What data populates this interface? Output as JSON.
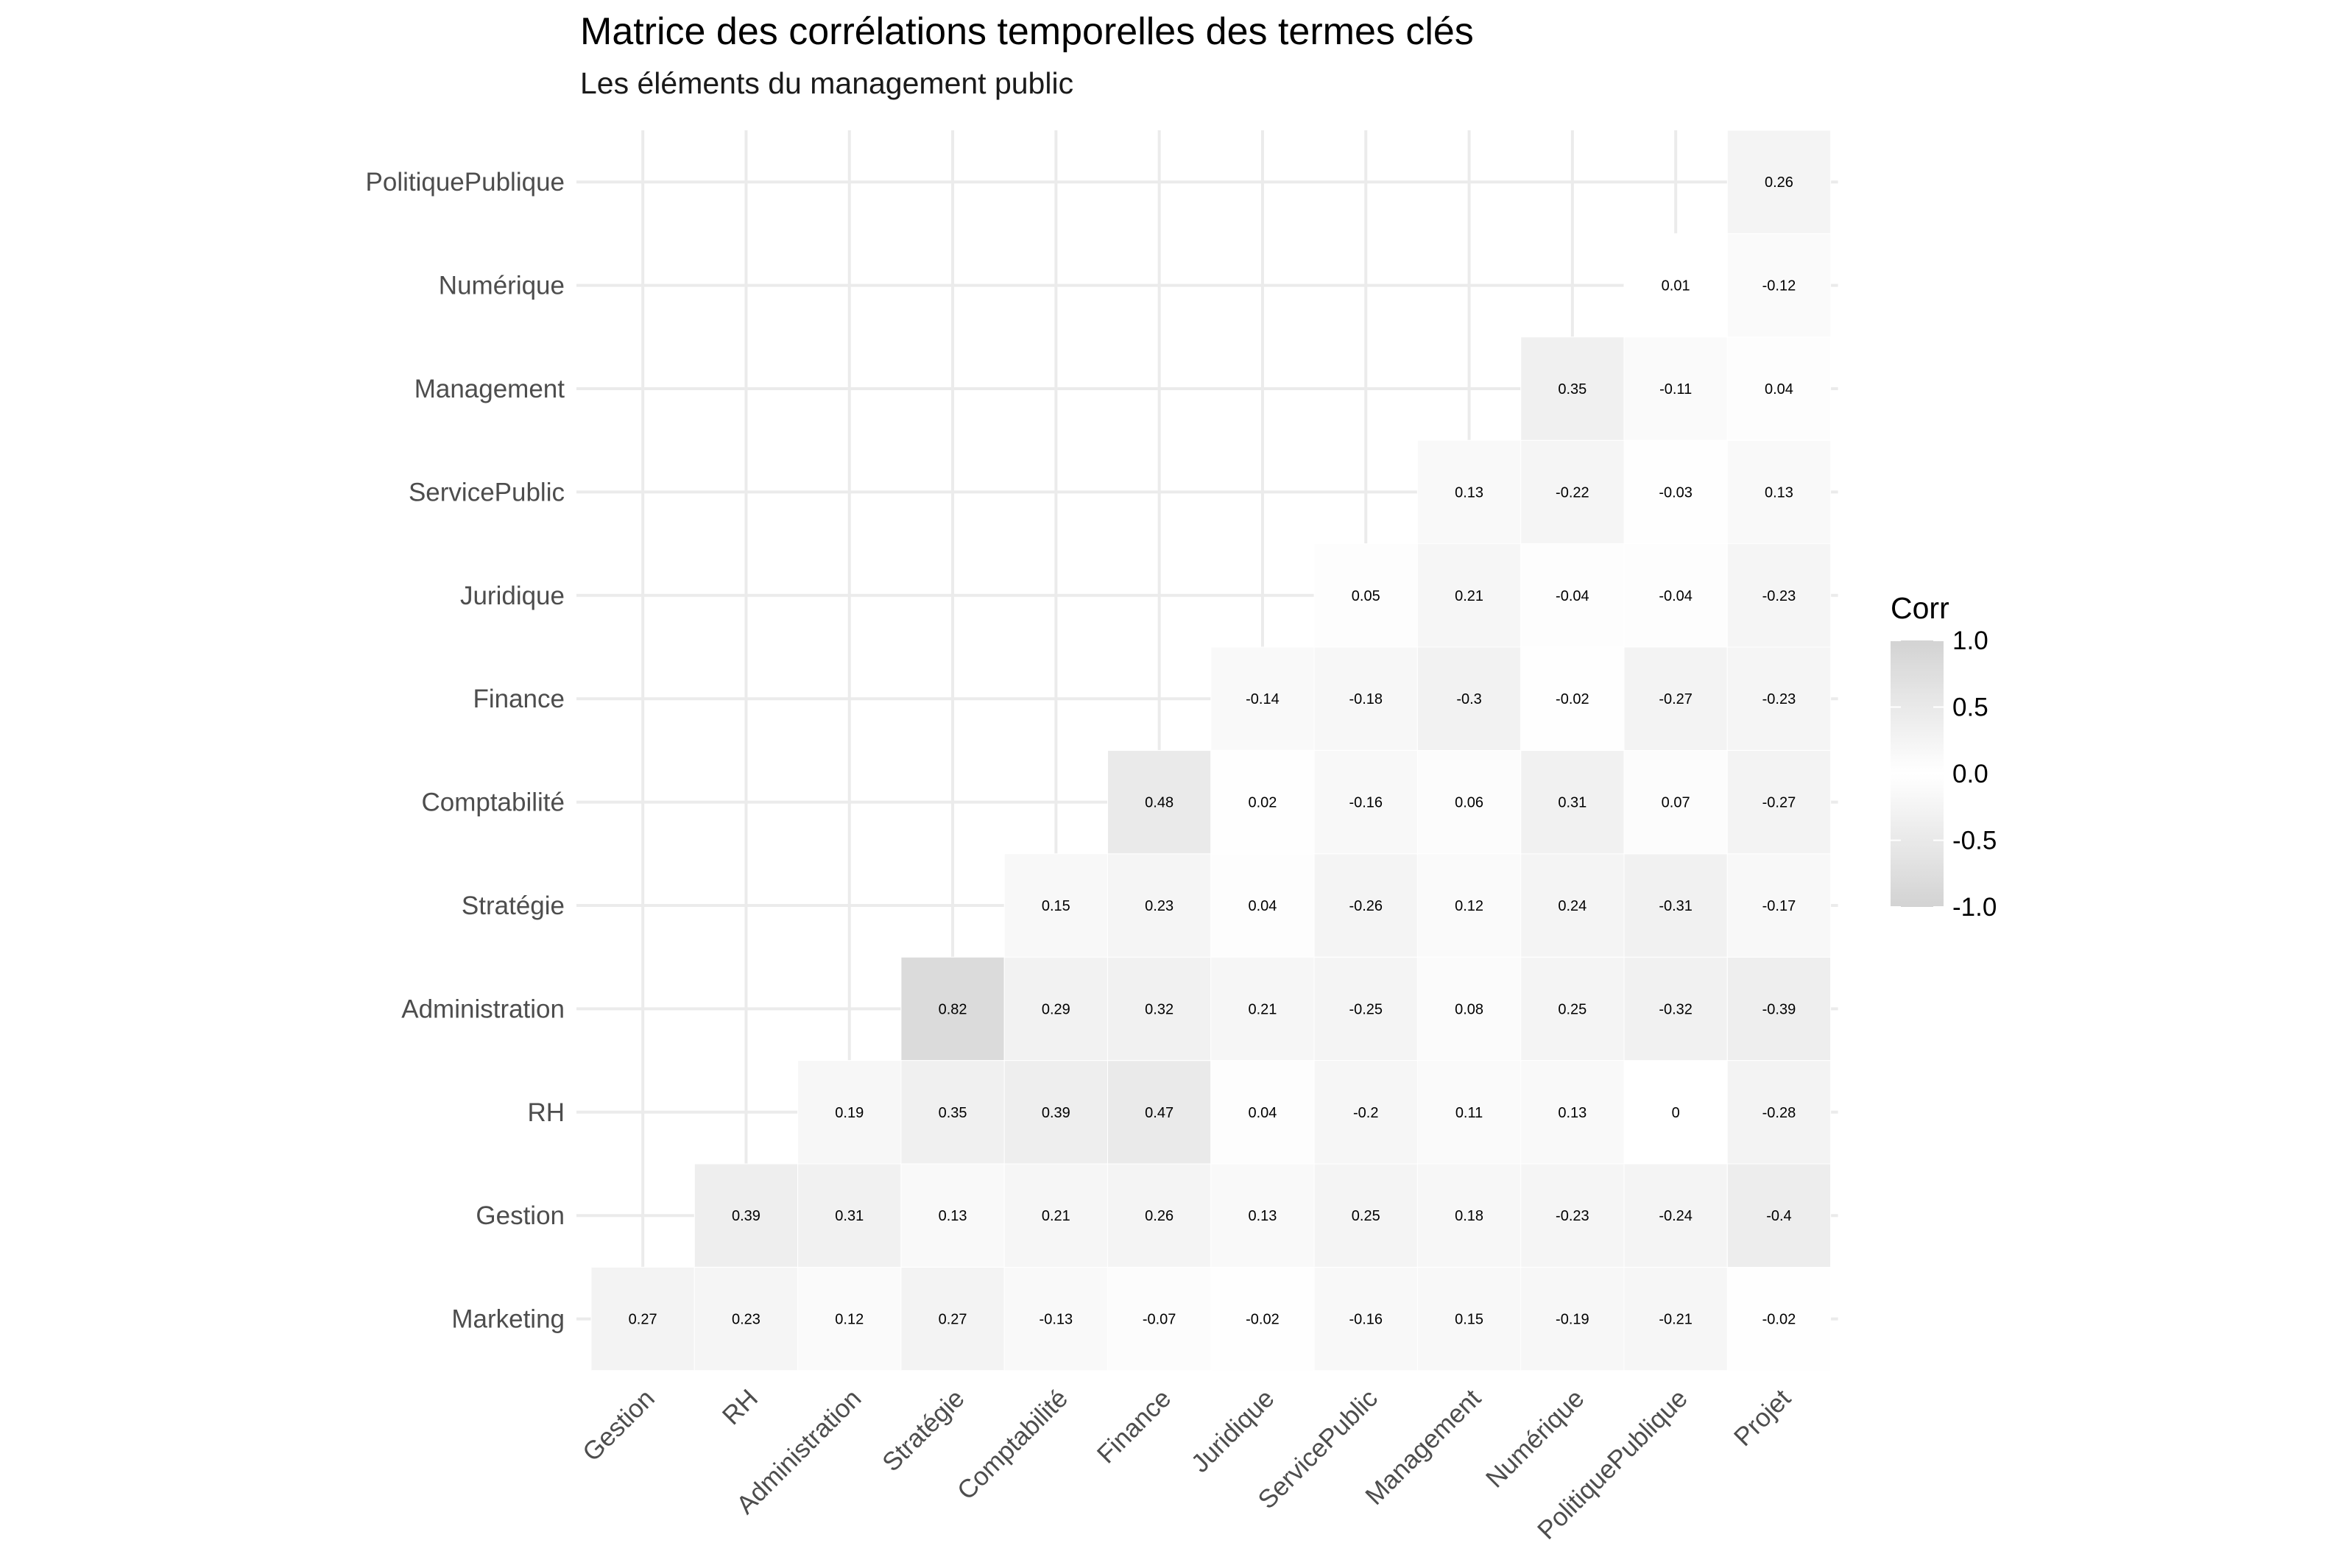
{
  "chart_data": {
    "type": "heatmap",
    "title": "Matrice des corrélations temporelles des termes clés",
    "subtitle": "Les éléments du management public",
    "x_categories": [
      "Gestion",
      "RH",
      "Administration",
      "Stratégie",
      "Comptabilité",
      "Finance",
      "Juridique",
      "ServicePublic",
      "Management",
      "Numérique",
      "PolitiquePublique",
      "Projet"
    ],
    "y_categories": [
      "Marketing",
      "Gestion",
      "RH",
      "Administration",
      "Stratégie",
      "Comptabilité",
      "Finance",
      "Juridique",
      "ServicePublic",
      "Management",
      "Numérique",
      "PolitiquePublique"
    ],
    "cells": [
      {
        "x": "Gestion",
        "y": "Marketing",
        "value": 0.27
      },
      {
        "x": "RH",
        "y": "Marketing",
        "value": 0.23
      },
      {
        "x": "Administration",
        "y": "Marketing",
        "value": 0.12
      },
      {
        "x": "Stratégie",
        "y": "Marketing",
        "value": 0.27
      },
      {
        "x": "Comptabilité",
        "y": "Marketing",
        "value": -0.13
      },
      {
        "x": "Finance",
        "y": "Marketing",
        "value": -0.07
      },
      {
        "x": "Juridique",
        "y": "Marketing",
        "value": -0.02
      },
      {
        "x": "ServicePublic",
        "y": "Marketing",
        "value": -0.16
      },
      {
        "x": "Management",
        "y": "Marketing",
        "value": 0.15
      },
      {
        "x": "Numérique",
        "y": "Marketing",
        "value": -0.19
      },
      {
        "x": "PolitiquePublique",
        "y": "Marketing",
        "value": -0.21
      },
      {
        "x": "Projet",
        "y": "Marketing",
        "value": -0.02
      },
      {
        "x": "RH",
        "y": "Gestion",
        "value": 0.39
      },
      {
        "x": "Administration",
        "y": "Gestion",
        "value": 0.31
      },
      {
        "x": "Stratégie",
        "y": "Gestion",
        "value": 0.13
      },
      {
        "x": "Comptabilité",
        "y": "Gestion",
        "value": 0.21
      },
      {
        "x": "Finance",
        "y": "Gestion",
        "value": 0.26
      },
      {
        "x": "Juridique",
        "y": "Gestion",
        "value": 0.13
      },
      {
        "x": "ServicePublic",
        "y": "Gestion",
        "value": 0.25
      },
      {
        "x": "Management",
        "y": "Gestion",
        "value": 0.18
      },
      {
        "x": "Numérique",
        "y": "Gestion",
        "value": -0.23
      },
      {
        "x": "PolitiquePublique",
        "y": "Gestion",
        "value": -0.24
      },
      {
        "x": "Projet",
        "y": "Gestion",
        "value": -0.4
      },
      {
        "x": "Administration",
        "y": "RH",
        "value": 0.19
      },
      {
        "x": "Stratégie",
        "y": "RH",
        "value": 0.35
      },
      {
        "x": "Comptabilité",
        "y": "RH",
        "value": 0.39
      },
      {
        "x": "Finance",
        "y": "RH",
        "value": 0.47
      },
      {
        "x": "Juridique",
        "y": "RH",
        "value": 0.04
      },
      {
        "x": "ServicePublic",
        "y": "RH",
        "value": -0.2
      },
      {
        "x": "Management",
        "y": "RH",
        "value": 0.11
      },
      {
        "x": "Numérique",
        "y": "RH",
        "value": 0.13
      },
      {
        "x": "PolitiquePublique",
        "y": "RH",
        "value": 0
      },
      {
        "x": "Projet",
        "y": "RH",
        "value": -0.28
      },
      {
        "x": "Stratégie",
        "y": "Administration",
        "value": 0.82
      },
      {
        "x": "Comptabilité",
        "y": "Administration",
        "value": 0.29
      },
      {
        "x": "Finance",
        "y": "Administration",
        "value": 0.32
      },
      {
        "x": "Juridique",
        "y": "Administration",
        "value": 0.21
      },
      {
        "x": "ServicePublic",
        "y": "Administration",
        "value": -0.25
      },
      {
        "x": "Management",
        "y": "Administration",
        "value": 0.08
      },
      {
        "x": "Numérique",
        "y": "Administration",
        "value": 0.25
      },
      {
        "x": "PolitiquePublique",
        "y": "Administration",
        "value": -0.32
      },
      {
        "x": "Projet",
        "y": "Administration",
        "value": -0.39
      },
      {
        "x": "Comptabilité",
        "y": "Stratégie",
        "value": 0.15
      },
      {
        "x": "Finance",
        "y": "Stratégie",
        "value": 0.23
      },
      {
        "x": "Juridique",
        "y": "Stratégie",
        "value": 0.04
      },
      {
        "x": "ServicePublic",
        "y": "Stratégie",
        "value": -0.26
      },
      {
        "x": "Management",
        "y": "Stratégie",
        "value": 0.12
      },
      {
        "x": "Numérique",
        "y": "Stratégie",
        "value": 0.24
      },
      {
        "x": "PolitiquePublique",
        "y": "Stratégie",
        "value": -0.31
      },
      {
        "x": "Projet",
        "y": "Stratégie",
        "value": -0.17
      },
      {
        "x": "Finance",
        "y": "Comptabilité",
        "value": 0.48
      },
      {
        "x": "Juridique",
        "y": "Comptabilité",
        "value": 0.02
      },
      {
        "x": "ServicePublic",
        "y": "Comptabilité",
        "value": -0.16
      },
      {
        "x": "Management",
        "y": "Comptabilité",
        "value": 0.06
      },
      {
        "x": "Numérique",
        "y": "Comptabilité",
        "value": 0.31
      },
      {
        "x": "PolitiquePublique",
        "y": "Comptabilité",
        "value": 0.07
      },
      {
        "x": "Projet",
        "y": "Comptabilité",
        "value": -0.27
      },
      {
        "x": "Juridique",
        "y": "Finance",
        "value": -0.14
      },
      {
        "x": "ServicePublic",
        "y": "Finance",
        "value": -0.18
      },
      {
        "x": "Management",
        "y": "Finance",
        "value": -0.3
      },
      {
        "x": "Numérique",
        "y": "Finance",
        "value": -0.02
      },
      {
        "x": "PolitiquePublique",
        "y": "Finance",
        "value": -0.27
      },
      {
        "x": "Projet",
        "y": "Finance",
        "value": -0.23
      },
      {
        "x": "ServicePublic",
        "y": "Juridique",
        "value": 0.05
      },
      {
        "x": "Management",
        "y": "Juridique",
        "value": 0.21
      },
      {
        "x": "Numérique",
        "y": "Juridique",
        "value": -0.04
      },
      {
        "x": "PolitiquePublique",
        "y": "Juridique",
        "value": -0.04
      },
      {
        "x": "Projet",
        "y": "Juridique",
        "value": -0.23
      },
      {
        "x": "Management",
        "y": "ServicePublic",
        "value": 0.13
      },
      {
        "x": "Numérique",
        "y": "ServicePublic",
        "value": -0.22
      },
      {
        "x": "PolitiquePublique",
        "y": "ServicePublic",
        "value": -0.03
      },
      {
        "x": "Projet",
        "y": "ServicePublic",
        "value": 0.13
      },
      {
        "x": "Numérique",
        "y": "Management",
        "value": 0.35
      },
      {
        "x": "PolitiquePublique",
        "y": "Management",
        "value": -0.11
      },
      {
        "x": "Projet",
        "y": "Management",
        "value": 0.04
      },
      {
        "x": "PolitiquePublique",
        "y": "Numérique",
        "value": 0.01
      },
      {
        "x": "Projet",
        "y": "Numérique",
        "value": -0.12
      },
      {
        "x": "Projet",
        "y": "PolitiquePublique",
        "value": 0.26
      }
    ],
    "legend": {
      "title": "Corr",
      "position": "right",
      "ticks": [
        "1.0",
        "0.5",
        "0.0",
        "-0.5",
        "-1.0"
      ],
      "tick_values": [
        1,
        0.5,
        0,
        -0.5,
        -1
      ],
      "range": [
        -1,
        1
      ]
    },
    "colors": {
      "neutral": "#ffffff",
      "extreme": "#d3d3d3",
      "grid": "#ebebeb"
    },
    "grid": true
  }
}
